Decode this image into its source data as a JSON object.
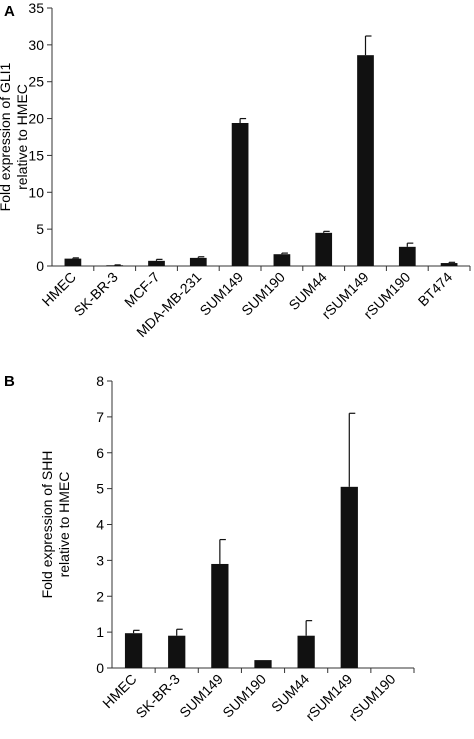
{
  "chart_data": [
    {
      "panel_label": "A",
      "type": "bar",
      "ylabel": [
        "Fold expression of GLI1",
        "relative to HMEC"
      ],
      "xlabel": "",
      "ylim": [
        0,
        35
      ],
      "yticks": [
        0,
        5,
        10,
        15,
        20,
        25,
        30,
        35
      ],
      "categories": [
        "HMEC",
        "SK-BR-3",
        "MCF-7",
        "MDA-MB-231",
        "SUM149",
        "SUM190",
        "SUM44",
        "rSUM149",
        "rSUM190",
        "BT474"
      ],
      "values": [
        1.0,
        0.1,
        0.7,
        1.1,
        19.4,
        1.6,
        4.5,
        28.6,
        2.6,
        0.4
      ],
      "errors": [
        0.1,
        0.05,
        0.2,
        0.15,
        0.6,
        0.15,
        0.2,
        2.6,
        0.5,
        0.1
      ],
      "bar_color": "#111111"
    },
    {
      "panel_label": "B",
      "type": "bar",
      "ylabel": [
        "Fold expression of SHH",
        "relative to HMEC"
      ],
      "xlabel": "",
      "ylim": [
        0,
        8
      ],
      "yticks": [
        0,
        1,
        2,
        3,
        4,
        5,
        6,
        7,
        8
      ],
      "categories": [
        "HMEC",
        "SK-BR-3",
        "SUM149",
        "SUM190",
        "SUM44",
        "rSUM149",
        "rSUM190"
      ],
      "values": [
        0.97,
        0.9,
        2.9,
        0.22,
        0.9,
        5.05,
        0.0
      ],
      "errors": [
        0.08,
        0.18,
        0.68,
        0.0,
        0.42,
        2.05,
        0.0
      ],
      "bar_color": "#111111"
    }
  ]
}
